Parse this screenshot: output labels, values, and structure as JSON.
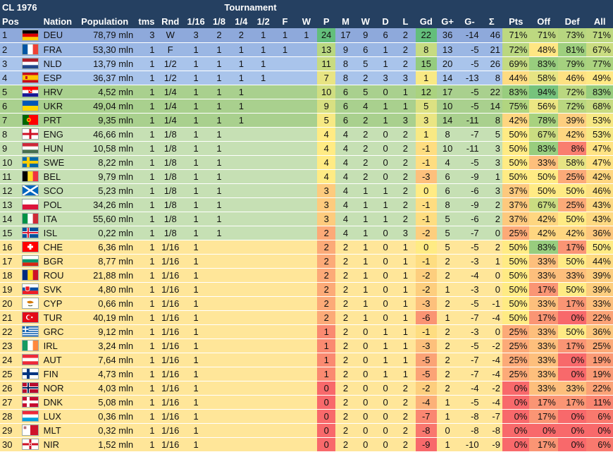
{
  "header": {
    "title": "CL 1976",
    "tournament": "Tournament",
    "columns": [
      "Pos",
      "",
      "Nation",
      "Population",
      "tms",
      "Rnd",
      "1/16",
      "1/8",
      "1/4",
      "1/2",
      "F",
      "W",
      "P",
      "M",
      "W",
      "D",
      "L",
      "Gd",
      "G+",
      "G-",
      "Σ",
      "Pts",
      "Off",
      "Def",
      "All"
    ]
  },
  "colors": {
    "header_bg": "#254061",
    "tier_w": "#8ea9db",
    "tier_f": "#9bb7e4",
    "tier_sf": "#a9c4eb",
    "tier_qf": "#a9d08e",
    "tier_r16": "#c6e0b4",
    "tier_r32": "#ffe699"
  },
  "rows": [
    {
      "pos": "1",
      "flag": "deu",
      "nation": "DEU",
      "pop": "78,79 mln",
      "tms": "3",
      "rnd": "W",
      "r116": "3",
      "r18": "2",
      "r14": "2",
      "r12": "1",
      "f": "1",
      "w": "1",
      "p": "24",
      "m": "17",
      "wn": "9",
      "d": "6",
      "l": "2",
      "gd": "22",
      "gp": "36",
      "gm": "-14",
      "s": "46",
      "pts": "71%",
      "off": "71%",
      "def": "73%",
      "all": "71%",
      "tier": "w"
    },
    {
      "pos": "2",
      "flag": "fra",
      "nation": "FRA",
      "pop": "53,30 mln",
      "tms": "1",
      "rnd": "F",
      "r116": "1",
      "r18": "1",
      "r14": "1",
      "r12": "1",
      "f": "1",
      "w": "",
      "p": "13",
      "m": "9",
      "wn": "6",
      "d": "1",
      "l": "2",
      "gd": "8",
      "gp": "13",
      "gm": "-5",
      "s": "21",
      "pts": "72%",
      "off": "48%",
      "def": "81%",
      "all": "67%",
      "tier": "f"
    },
    {
      "pos": "3",
      "flag": "nld",
      "nation": "NLD",
      "pop": "13,79 mln",
      "tms": "1",
      "rnd": "1/2",
      "r116": "1",
      "r18": "1",
      "r14": "1",
      "r12": "1",
      "f": "",
      "w": "",
      "p": "11",
      "m": "8",
      "wn": "5",
      "d": "1",
      "l": "2",
      "gd": "15",
      "gp": "20",
      "gm": "-5",
      "s": "26",
      "pts": "69%",
      "off": "83%",
      "def": "79%",
      "all": "77%",
      "tier": "sf"
    },
    {
      "pos": "4",
      "flag": "esp",
      "nation": "ESP",
      "pop": "36,37 mln",
      "tms": "1",
      "rnd": "1/2",
      "r116": "1",
      "r18": "1",
      "r14": "1",
      "r12": "1",
      "f": "",
      "w": "",
      "p": "7",
      "m": "8",
      "wn": "2",
      "d": "3",
      "l": "3",
      "gd": "1",
      "gp": "14",
      "gm": "-13",
      "s": "8",
      "pts": "44%",
      "off": "58%",
      "def": "46%",
      "all": "49%",
      "tier": "sf"
    },
    {
      "pos": "5",
      "flag": "hrv",
      "nation": "HRV",
      "pop": "4,52 mln",
      "tms": "1",
      "rnd": "1/4",
      "r116": "1",
      "r18": "1",
      "r14": "1",
      "r12": "",
      "f": "",
      "w": "",
      "p": "10",
      "m": "6",
      "wn": "5",
      "d": "0",
      "l": "1",
      "gd": "12",
      "gp": "17",
      "gm": "-5",
      "s": "22",
      "pts": "83%",
      "off": "94%",
      "def": "72%",
      "all": "83%",
      "tier": "qf"
    },
    {
      "pos": "6",
      "flag": "ukr",
      "nation": "UKR",
      "pop": "49,04 mln",
      "tms": "1",
      "rnd": "1/4",
      "r116": "1",
      "r18": "1",
      "r14": "1",
      "r12": "",
      "f": "",
      "w": "",
      "p": "9",
      "m": "6",
      "wn": "4",
      "d": "1",
      "l": "1",
      "gd": "5",
      "gp": "10",
      "gm": "-5",
      "s": "14",
      "pts": "75%",
      "off": "56%",
      "def": "72%",
      "all": "68%",
      "tier": "qf"
    },
    {
      "pos": "7",
      "flag": "prt",
      "nation": "PRT",
      "pop": "9,35 mln",
      "tms": "1",
      "rnd": "1/4",
      "r116": "1",
      "r18": "1",
      "r14": "1",
      "r12": "",
      "f": "",
      "w": "",
      "p": "5",
      "m": "6",
      "wn": "2",
      "d": "1",
      "l": "3",
      "gd": "3",
      "gp": "14",
      "gm": "-11",
      "s": "8",
      "pts": "42%",
      "off": "78%",
      "def": "39%",
      "all": "53%",
      "tier": "qf"
    },
    {
      "pos": "8",
      "flag": "eng",
      "nation": "ENG",
      "pop": "46,66 mln",
      "tms": "1",
      "rnd": "1/8",
      "r116": "1",
      "r18": "1",
      "r14": "",
      "r12": "",
      "f": "",
      "w": "",
      "p": "4",
      "m": "4",
      "wn": "2",
      "d": "0",
      "l": "2",
      "gd": "1",
      "gp": "8",
      "gm": "-7",
      "s": "5",
      "pts": "50%",
      "off": "67%",
      "def": "42%",
      "all": "53%",
      "tier": "r16"
    },
    {
      "pos": "9",
      "flag": "hun",
      "nation": "HUN",
      "pop": "10,58 mln",
      "tms": "1",
      "rnd": "1/8",
      "r116": "1",
      "r18": "1",
      "r14": "",
      "r12": "",
      "f": "",
      "w": "",
      "p": "4",
      "m": "4",
      "wn": "2",
      "d": "0",
      "l": "2",
      "gd": "-1",
      "gp": "10",
      "gm": "-11",
      "s": "3",
      "pts": "50%",
      "off": "83%",
      "def": "8%",
      "all": "47%",
      "tier": "r16"
    },
    {
      "pos": "10",
      "flag": "swe",
      "nation": "SWE",
      "pop": "8,22 mln",
      "tms": "1",
      "rnd": "1/8",
      "r116": "1",
      "r18": "1",
      "r14": "",
      "r12": "",
      "f": "",
      "w": "",
      "p": "4",
      "m": "4",
      "wn": "2",
      "d": "0",
      "l": "2",
      "gd": "-1",
      "gp": "4",
      "gm": "-5",
      "s": "3",
      "pts": "50%",
      "off": "33%",
      "def": "58%",
      "all": "47%",
      "tier": "r16"
    },
    {
      "pos": "11",
      "flag": "bel",
      "nation": "BEL",
      "pop": "9,79 mln",
      "tms": "1",
      "rnd": "1/8",
      "r116": "1",
      "r18": "1",
      "r14": "",
      "r12": "",
      "f": "",
      "w": "",
      "p": "4",
      "m": "4",
      "wn": "2",
      "d": "0",
      "l": "2",
      "gd": "-3",
      "gp": "6",
      "gm": "-9",
      "s": "1",
      "pts": "50%",
      "off": "50%",
      "def": "25%",
      "all": "42%",
      "tier": "r16"
    },
    {
      "pos": "12",
      "flag": "sco",
      "nation": "SCO",
      "pop": "5,23 mln",
      "tms": "1",
      "rnd": "1/8",
      "r116": "1",
      "r18": "1",
      "r14": "",
      "r12": "",
      "f": "",
      "w": "",
      "p": "3",
      "m": "4",
      "wn": "1",
      "d": "1",
      "l": "2",
      "gd": "0",
      "gp": "6",
      "gm": "-6",
      "s": "3",
      "pts": "37%",
      "off": "50%",
      "def": "50%",
      "all": "46%",
      "tier": "r16"
    },
    {
      "pos": "13",
      "flag": "pol",
      "nation": "POL",
      "pop": "34,26 mln",
      "tms": "1",
      "rnd": "1/8",
      "r116": "1",
      "r18": "1",
      "r14": "",
      "r12": "",
      "f": "",
      "w": "",
      "p": "3",
      "m": "4",
      "wn": "1",
      "d": "1",
      "l": "2",
      "gd": "-1",
      "gp": "8",
      "gm": "-9",
      "s": "2",
      "pts": "37%",
      "off": "67%",
      "def": "25%",
      "all": "43%",
      "tier": "r16"
    },
    {
      "pos": "14",
      "flag": "ita",
      "nation": "ITA",
      "pop": "55,60 mln",
      "tms": "1",
      "rnd": "1/8",
      "r116": "1",
      "r18": "1",
      "r14": "",
      "r12": "",
      "f": "",
      "w": "",
      "p": "3",
      "m": "4",
      "wn": "1",
      "d": "1",
      "l": "2",
      "gd": "-1",
      "gp": "5",
      "gm": "-6",
      "s": "2",
      "pts": "37%",
      "off": "42%",
      "def": "50%",
      "all": "43%",
      "tier": "r16"
    },
    {
      "pos": "15",
      "flag": "isl",
      "nation": "ISL",
      "pop": "0,22 mln",
      "tms": "1",
      "rnd": "1/8",
      "r116": "1",
      "r18": "1",
      "r14": "",
      "r12": "",
      "f": "",
      "w": "",
      "p": "2",
      "m": "4",
      "wn": "1",
      "d": "0",
      "l": "3",
      "gd": "-2",
      "gp": "5",
      "gm": "-7",
      "s": "0",
      "pts": "25%",
      "off": "42%",
      "def": "42%",
      "all": "36%",
      "tier": "r16"
    },
    {
      "pos": "16",
      "flag": "che",
      "nation": "CHE",
      "pop": "6,36 mln",
      "tms": "1",
      "rnd": "1/16",
      "r116": "1",
      "r18": "",
      "r14": "",
      "r12": "",
      "f": "",
      "w": "",
      "p": "2",
      "m": "2",
      "wn": "1",
      "d": "0",
      "l": "1",
      "gd": "0",
      "gp": "5",
      "gm": "-5",
      "s": "2",
      "pts": "50%",
      "off": "83%",
      "def": "17%",
      "all": "50%",
      "tier": "r32"
    },
    {
      "pos": "17",
      "flag": "bgr",
      "nation": "BGR",
      "pop": "8,77 mln",
      "tms": "1",
      "rnd": "1/16",
      "r116": "1",
      "r18": "",
      "r14": "",
      "r12": "",
      "f": "",
      "w": "",
      "p": "2",
      "m": "2",
      "wn": "1",
      "d": "0",
      "l": "1",
      "gd": "-1",
      "gp": "2",
      "gm": "-3",
      "s": "1",
      "pts": "50%",
      "off": "33%",
      "def": "50%",
      "all": "44%",
      "tier": "r32"
    },
    {
      "pos": "18",
      "flag": "rou",
      "nation": "ROU",
      "pop": "21,88 mln",
      "tms": "1",
      "rnd": "1/16",
      "r116": "1",
      "r18": "",
      "r14": "",
      "r12": "",
      "f": "",
      "w": "",
      "p": "2",
      "m": "2",
      "wn": "1",
      "d": "0",
      "l": "1",
      "gd": "-2",
      "gp": "2",
      "gm": "-4",
      "s": "0",
      "pts": "50%",
      "off": "33%",
      "def": "33%",
      "all": "39%",
      "tier": "r32"
    },
    {
      "pos": "19",
      "flag": "svk",
      "nation": "SVK",
      "pop": "4,80 mln",
      "tms": "1",
      "rnd": "1/16",
      "r116": "1",
      "r18": "",
      "r14": "",
      "r12": "",
      "f": "",
      "w": "",
      "p": "2",
      "m": "2",
      "wn": "1",
      "d": "0",
      "l": "1",
      "gd": "-2",
      "gp": "1",
      "gm": "-3",
      "s": "0",
      "pts": "50%",
      "off": "17%",
      "def": "50%",
      "all": "39%",
      "tier": "r32"
    },
    {
      "pos": "20",
      "flag": "cyp",
      "nation": "CYP",
      "pop": "0,66 mln",
      "tms": "1",
      "rnd": "1/16",
      "r116": "1",
      "r18": "",
      "r14": "",
      "r12": "",
      "f": "",
      "w": "",
      "p": "2",
      "m": "2",
      "wn": "1",
      "d": "0",
      "l": "1",
      "gd": "-3",
      "gp": "2",
      "gm": "-5",
      "s": "-1",
      "pts": "50%",
      "off": "33%",
      "def": "17%",
      "all": "33%",
      "tier": "r32"
    },
    {
      "pos": "21",
      "flag": "tur",
      "nation": "TUR",
      "pop": "40,19 mln",
      "tms": "1",
      "rnd": "1/16",
      "r116": "1",
      "r18": "",
      "r14": "",
      "r12": "",
      "f": "",
      "w": "",
      "p": "2",
      "m": "2",
      "wn": "1",
      "d": "0",
      "l": "1",
      "gd": "-6",
      "gp": "1",
      "gm": "-7",
      "s": "-4",
      "pts": "50%",
      "off": "17%",
      "def": "0%",
      "all": "22%",
      "tier": "r32"
    },
    {
      "pos": "22",
      "flag": "grc",
      "nation": "GRC",
      "pop": "9,12 mln",
      "tms": "1",
      "rnd": "1/16",
      "r116": "1",
      "r18": "",
      "r14": "",
      "r12": "",
      "f": "",
      "w": "",
      "p": "1",
      "m": "2",
      "wn": "0",
      "d": "1",
      "l": "1",
      "gd": "-1",
      "gp": "2",
      "gm": "-3",
      "s": "0",
      "pts": "25%",
      "off": "33%",
      "def": "50%",
      "all": "36%",
      "tier": "r32"
    },
    {
      "pos": "23",
      "flag": "irl",
      "nation": "IRL",
      "pop": "3,24 mln",
      "tms": "1",
      "rnd": "1/16",
      "r116": "1",
      "r18": "",
      "r14": "",
      "r12": "",
      "f": "",
      "w": "",
      "p": "1",
      "m": "2",
      "wn": "0",
      "d": "1",
      "l": "1",
      "gd": "-3",
      "gp": "2",
      "gm": "-5",
      "s": "-2",
      "pts": "25%",
      "off": "33%",
      "def": "17%",
      "all": "25%",
      "tier": "r32"
    },
    {
      "pos": "24",
      "flag": "aut",
      "nation": "AUT",
      "pop": "7,64 mln",
      "tms": "1",
      "rnd": "1/16",
      "r116": "1",
      "r18": "",
      "r14": "",
      "r12": "",
      "f": "",
      "w": "",
      "p": "1",
      "m": "2",
      "wn": "0",
      "d": "1",
      "l": "1",
      "gd": "-5",
      "gp": "2",
      "gm": "-7",
      "s": "-4",
      "pts": "25%",
      "off": "33%",
      "def": "0%",
      "all": "19%",
      "tier": "r32"
    },
    {
      "pos": "25",
      "flag": "fin",
      "nation": "FIN",
      "pop": "4,73 mln",
      "tms": "1",
      "rnd": "1/16",
      "r116": "1",
      "r18": "",
      "r14": "",
      "r12": "",
      "f": "",
      "w": "",
      "p": "1",
      "m": "2",
      "wn": "0",
      "d": "1",
      "l": "1",
      "gd": "-5",
      "gp": "2",
      "gm": "-7",
      "s": "-4",
      "pts": "25%",
      "off": "33%",
      "def": "0%",
      "all": "19%",
      "tier": "r32"
    },
    {
      "pos": "26",
      "flag": "nor",
      "nation": "NOR",
      "pop": "4,03 mln",
      "tms": "1",
      "rnd": "1/16",
      "r116": "1",
      "r18": "",
      "r14": "",
      "r12": "",
      "f": "",
      "w": "",
      "p": "0",
      "m": "2",
      "wn": "0",
      "d": "0",
      "l": "2",
      "gd": "-2",
      "gp": "2",
      "gm": "-4",
      "s": "-2",
      "pts": "0%",
      "off": "33%",
      "def": "33%",
      "all": "22%",
      "tier": "r32"
    },
    {
      "pos": "27",
      "flag": "dnk",
      "nation": "DNK",
      "pop": "5,08 mln",
      "tms": "1",
      "rnd": "1/16",
      "r116": "1",
      "r18": "",
      "r14": "",
      "r12": "",
      "f": "",
      "w": "",
      "p": "0",
      "m": "2",
      "wn": "0",
      "d": "0",
      "l": "2",
      "gd": "-4",
      "gp": "1",
      "gm": "-5",
      "s": "-4",
      "pts": "0%",
      "off": "17%",
      "def": "17%",
      "all": "11%",
      "tier": "r32"
    },
    {
      "pos": "28",
      "flag": "lux",
      "nation": "LUX",
      "pop": "0,36 mln",
      "tms": "1",
      "rnd": "1/16",
      "r116": "1",
      "r18": "",
      "r14": "",
      "r12": "",
      "f": "",
      "w": "",
      "p": "0",
      "m": "2",
      "wn": "0",
      "d": "0",
      "l": "2",
      "gd": "-7",
      "gp": "1",
      "gm": "-8",
      "s": "-7",
      "pts": "0%",
      "off": "17%",
      "def": "0%",
      "all": "6%",
      "tier": "r32"
    },
    {
      "pos": "29",
      "flag": "mlt",
      "nation": "MLT",
      "pop": "0,32 mln",
      "tms": "1",
      "rnd": "1/16",
      "r116": "1",
      "r18": "",
      "r14": "",
      "r12": "",
      "f": "",
      "w": "",
      "p": "0",
      "m": "2",
      "wn": "0",
      "d": "0",
      "l": "2",
      "gd": "-8",
      "gp": "0",
      "gm": "-8",
      "s": "-8",
      "pts": "0%",
      "off": "0%",
      "def": "0%",
      "all": "0%",
      "tier": "r32"
    },
    {
      "pos": "30",
      "flag": "nir",
      "nation": "NIR",
      "pop": "1,52 mln",
      "tms": "1",
      "rnd": "1/16",
      "r116": "1",
      "r18": "",
      "r14": "",
      "r12": "",
      "f": "",
      "w": "",
      "p": "0",
      "m": "2",
      "wn": "0",
      "d": "0",
      "l": "2",
      "gd": "-9",
      "gp": "1",
      "gm": "-10",
      "s": "-9",
      "pts": "0%",
      "off": "17%",
      "def": "0%",
      "all": "6%",
      "tier": "r32"
    }
  ]
}
